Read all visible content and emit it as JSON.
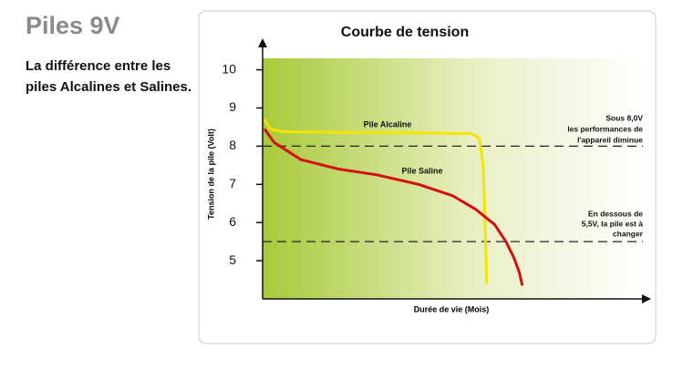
{
  "page": {
    "heading": "Piles 9V",
    "subheading": [
      "La différence entre les",
      "piles Alcalines et Salines."
    ]
  },
  "chart_data": {
    "type": "line",
    "title": "Courbe de tension",
    "y_label": "Tension de la pile  (Volt)",
    "x_label": "Durée de vie  (Mois)",
    "xlim": [
      0,
      100
    ],
    "ylim": [
      4,
      10.3
    ],
    "yticks": [
      5,
      6,
      7,
      8,
      9,
      10
    ],
    "series": [
      {
        "name": "Pile  Alcaline",
        "color": "#f2e500",
        "x": [
          0.5,
          2,
          5,
          20,
          40,
          55,
          57,
          58,
          58.5,
          58.8,
          59
        ],
        "values": [
          8.7,
          8.45,
          8.38,
          8.36,
          8.35,
          8.33,
          8.2,
          7.5,
          6.0,
          5.0,
          4.4
        ]
      },
      {
        "name": "Pile  Saline",
        "color": "#d30f0f",
        "x": [
          0.5,
          3,
          10,
          20,
          30,
          41,
          50,
          56,
          61,
          64,
          66,
          67.5,
          68.3
        ],
        "values": [
          8.45,
          8.1,
          7.65,
          7.4,
          7.25,
          7.0,
          6.7,
          6.35,
          5.95,
          5.5,
          5.1,
          4.7,
          4.35
        ]
      }
    ],
    "reference_lines": [
      {
        "value": 8.0,
        "label": [
          "Sous 8,0V",
          "les performances de",
          "l'appareil diminue"
        ]
      },
      {
        "value": 5.5,
        "label": [
          "En dessous de",
          "5,5V, la pile est à",
          "changer"
        ]
      }
    ]
  }
}
